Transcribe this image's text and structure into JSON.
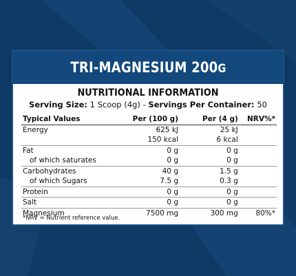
{
  "banner": {
    "title": "TRI-MAGNESIUM",
    "amount": "200",
    "unit": "G"
  },
  "heading": "NUTRITIONAL INFORMATION",
  "serving": {
    "size_label": "Serving Size:",
    "size_value": "1 Scoop (4g)",
    "separator": "-",
    "per_container_label": "Servings Per Container:",
    "per_container_value": "50"
  },
  "table": {
    "headers": [
      "Typical Values",
      "Per (100 g)",
      "Per (4 g)",
      "NRV%*"
    ],
    "rows": [
      {
        "label": "Energy",
        "per100": "625 kJ",
        "per4": "25 kJ",
        "nrv": ""
      },
      {
        "label": "",
        "per100": "150 kcal",
        "per4": "6 kcal",
        "nrv": ""
      },
      {
        "label": "Fat",
        "per100": "0 g",
        "per4": "0 g",
        "nrv": ""
      },
      {
        "label": "of which saturates",
        "per100": "0 g",
        "per4": "0 g",
        "nrv": ""
      },
      {
        "label": "Carbohydrates",
        "per100": "40 g",
        "per4": "1.5 g",
        "nrv": ""
      },
      {
        "label": "of which Sugars",
        "per100": "7.5 g",
        "per4": "0.3 g",
        "nrv": ""
      },
      {
        "label": "Protein",
        "per100": "0 g",
        "per4": "0 g",
        "nrv": ""
      },
      {
        "label": "Salt",
        "per100": "0 g",
        "per4": "0 g",
        "nrv": ""
      },
      {
        "label": "Magnesium",
        "per100": "7500 mg",
        "per4": "300 mg",
        "nrv": "80%*"
      }
    ]
  },
  "footnote": "*NRV = Nutrient reference value.",
  "colors": {
    "background": "#0f3a66",
    "banner": "#12487c",
    "card_border": "#1d4f83"
  }
}
